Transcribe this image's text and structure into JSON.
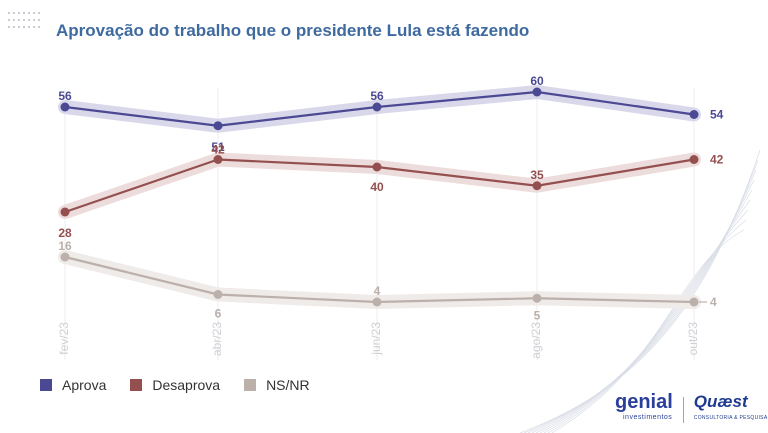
{
  "chart_data": {
    "type": "line",
    "title": "Aprovação do trabalho que o presidente Lula está fazendo",
    "categories": [
      "fev/23",
      "abr/23",
      "jun/23",
      "ago/23",
      "out/23"
    ],
    "ylim": [
      0,
      70
    ],
    "grid": false,
    "legend_position": "bottom-left",
    "series": [
      {
        "name": "Aprova",
        "values": [
          56,
          51,
          56,
          60,
          54
        ],
        "color": "#4b4994"
      },
      {
        "name": "Desaprova",
        "values": [
          28,
          42,
          40,
          35,
          42
        ],
        "color": "#94504f"
      },
      {
        "name": "NS/NR",
        "values": [
          16,
          6,
          4,
          5,
          4
        ],
        "color": "#bcb0aa"
      }
    ]
  },
  "logos": {
    "genial": "genial",
    "genial_sub": "investimentos",
    "quaest": "Quæst",
    "quaest_sub": "CONSULTORIA & PESQUISA"
  }
}
